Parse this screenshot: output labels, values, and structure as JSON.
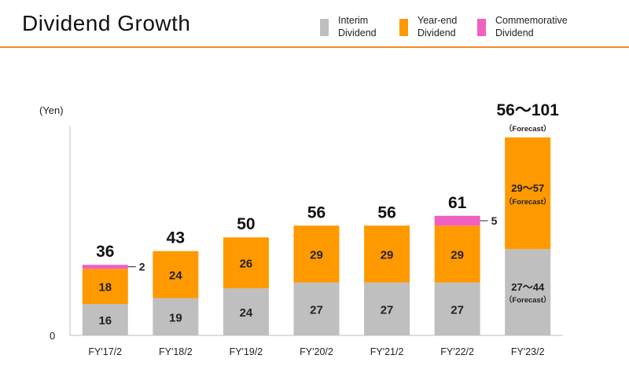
{
  "header": {
    "title": "Dividend Growth"
  },
  "legend": [
    {
      "key": "interim",
      "line1": "Interim",
      "line2": "Dividend",
      "color": "#bfbfbf"
    },
    {
      "key": "yearend",
      "line1": "Year-end",
      "line2": "Dividend",
      "color": "#ff9900"
    },
    {
      "key": "commem",
      "line1": "Commemorative",
      "line2": "Dividend",
      "color": "#f060c0"
    }
  ],
  "chart_data": {
    "type": "bar",
    "stacked": true,
    "unit_label": "(Yen)",
    "y_zero_label": "0",
    "categories": [
      "FY'17/2",
      "FY'18/2",
      "FY'19/2",
      "FY'20/2",
      "FY'21/2",
      "FY'22/2",
      "FY'23/2"
    ],
    "series": [
      {
        "name": "Interim Dividend",
        "values": [
          16,
          19,
          24,
          27,
          27,
          27,
          44
        ],
        "labels": [
          "16",
          "19",
          "24",
          "27",
          "27",
          "27",
          "27～44"
        ],
        "color": "#bfbfbf"
      },
      {
        "name": "Year-end Dividend",
        "values": [
          18,
          24,
          26,
          29,
          29,
          29,
          57
        ],
        "labels": [
          "18",
          "24",
          "26",
          "29",
          "29",
          "29",
          "29～57"
        ],
        "color": "#ff9900"
      },
      {
        "name": "Commemorative Dividend",
        "values": [
          2,
          0,
          0,
          0,
          0,
          5,
          0
        ],
        "labels": [
          "2",
          "",
          "",
          "",
          "",
          "5",
          ""
        ],
        "color": "#f060c0"
      }
    ],
    "totals": [
      "36",
      "43",
      "50",
      "56",
      "56",
      "61",
      "56～101"
    ],
    "forecast_note": "（Forecast）",
    "ylim": [
      0,
      107
    ],
    "grid": false
  }
}
